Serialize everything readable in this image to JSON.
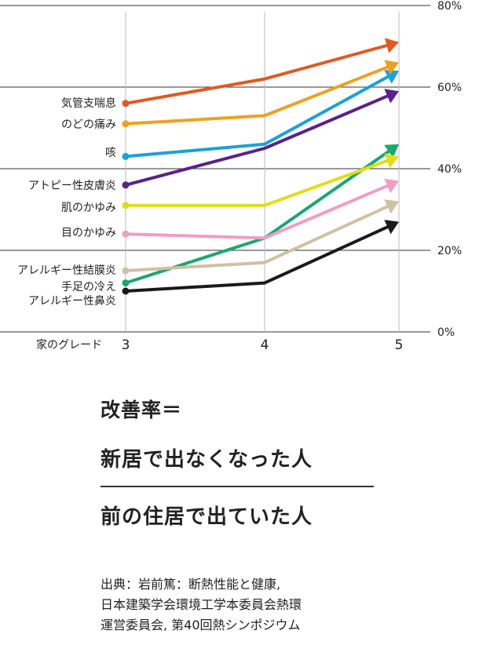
{
  "chart_data": {
    "type": "line",
    "x": [
      3,
      4,
      5
    ],
    "xlabel": "家のグレード",
    "ylim": [
      0,
      80
    ],
    "yticks": [
      0,
      20,
      40,
      60,
      80
    ],
    "ytick_labels": [
      "0%",
      "20%",
      "40%",
      "60%",
      "80%"
    ],
    "grid": true,
    "series": [
      {
        "name": "気管支喘息",
        "values": [
          56,
          62,
          71
        ],
        "color": "#e05a22"
      },
      {
        "name": "のどの痛み",
        "values": [
          51,
          53,
          66
        ],
        "color": "#f0a020"
      },
      {
        "name": "咳",
        "values": [
          43,
          46,
          64
        ],
        "color": "#1ba1d8"
      },
      {
        "name": "アトピー性皮膚炎",
        "values": [
          36,
          45,
          59
        ],
        "color": "#5a2289"
      },
      {
        "name": "肌のかゆみ",
        "values": [
          31,
          31,
          43
        ],
        "color": "#dede1a"
      },
      {
        "name": "目のかゆみ",
        "values": [
          24,
          23,
          37
        ],
        "color": "#ee9ec4"
      },
      {
        "name": "アレルギー性結膜炎",
        "values": [
          15,
          17,
          32
        ],
        "color": "#cfc1a3"
      },
      {
        "name": "手足の冷え",
        "values": [
          12,
          23,
          46
        ],
        "color": "#1aa870"
      },
      {
        "name": "アレルギー性鼻炎",
        "values": [
          10,
          12,
          27
        ],
        "color": "#1a1a1a"
      }
    ]
  },
  "formula": {
    "title": "改善率＝",
    "numerator": "新居で出なくなった人",
    "denominator": "前の住居で出ていた人"
  },
  "source": {
    "line1": "出典：岩前篤：断熱性能と健康,",
    "line2": "日本建築学会環境工学本委員会熱環",
    "line3": "運営委員会, 第40回熱シンポジウム"
  }
}
